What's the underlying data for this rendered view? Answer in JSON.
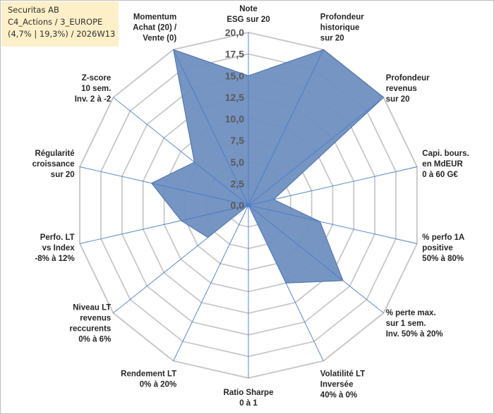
{
  "title_box": {
    "line1": "Securitas AB",
    "line2": "C4_Actions / 3_EUROPE",
    "line3": "(4,7% | 19,3%) / 2026W13",
    "background": "#fdf0c8"
  },
  "chart_data": {
    "type": "radar",
    "title": "Securitas AB",
    "subtitle": "C4_Actions / 3_EUROPE (4,7% | 19,3%) / 2026W13",
    "rmin": 0,
    "rmax": 20,
    "tick_step": 2.5,
    "tick_labels": [
      "0,0",
      "2,5",
      "5,0",
      "7,5",
      "10,0",
      "12,5",
      "15,0",
      "17,5",
      "20,0"
    ],
    "grid": true,
    "fill_color": "#6f8fc0",
    "line_color": "#4a6fa8",
    "grid_color": "#c8c8c8",
    "axis_color": "#4a7cc4",
    "axes": [
      {
        "label": [
          "Note",
          "ESG sur 20"
        ]
      },
      {
        "label": [
          "Profondeur",
          "historique",
          "sur 20"
        ]
      },
      {
        "label": [
          "Profondeur",
          "revenus",
          "sur 20"
        ]
      },
      {
        "label": [
          "Capi. bours.",
          "en MdEUR",
          "0 à 60 G€"
        ]
      },
      {
        "label": [
          "% perfo 1A",
          "positive",
          "50% à 80%"
        ]
      },
      {
        "label": [
          "% perte max.",
          "sur 1 sem.",
          "Inv. 50% à 20%"
        ]
      },
      {
        "label": [
          "Volatilité LT",
          "Inversée",
          "40% à 0%"
        ]
      },
      {
        "label": [
          "Ratio Sharpe",
          "0 à 1"
        ]
      },
      {
        "label": [
          "Rendement LT",
          "0% à 20%"
        ]
      },
      {
        "label": [
          "Niveau LT",
          "revenus",
          "reccurents",
          "0% à 6%"
        ]
      },
      {
        "label": [
          "Perfo. LT",
          "vs Index",
          "-8% à 12%"
        ]
      },
      {
        "label": [
          "Régularité",
          "croissance",
          "sur 20"
        ]
      },
      {
        "label": [
          "Z-score",
          "10 sem.",
          "Inv. 2 à -2"
        ]
      },
      {
        "label": [
          "Momentum",
          "Achat (20) /",
          "Vente (0)"
        ]
      }
    ],
    "series": [
      {
        "name": "Securitas AB",
        "values": [
          15.0,
          20.0,
          20.0,
          3.0,
          8.5,
          14.0,
          10.0,
          0.0,
          0.0,
          6.0,
          8.0,
          11.5,
          8.0,
          20.0
        ]
      }
    ]
  }
}
